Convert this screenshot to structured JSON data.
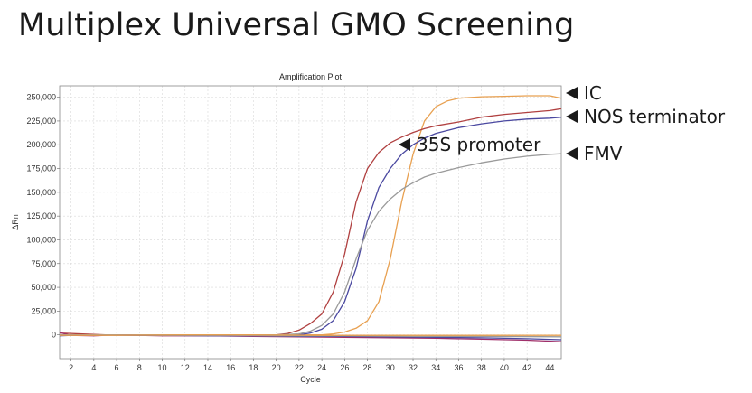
{
  "page": {
    "title": "Multiplex Universal GMO Screening"
  },
  "chart_data": {
    "type": "line",
    "title": "Amplification Plot",
    "xlabel": "Cycle",
    "ylabel": "ΔRn",
    "xlim": [
      1,
      45
    ],
    "ylim": [
      -25000,
      262000
    ],
    "x_ticks": [
      2,
      4,
      6,
      8,
      10,
      12,
      14,
      16,
      18,
      20,
      22,
      24,
      26,
      28,
      30,
      32,
      34,
      36,
      38,
      40,
      42,
      44
    ],
    "y_ticks": [
      0,
      25000,
      50000,
      75000,
      100000,
      125000,
      150000,
      175000,
      200000,
      225000,
      250000
    ],
    "y_tick_labels": [
      "0",
      "25,000",
      "50,000",
      "75,000",
      "100,000",
      "125,000",
      "150,000",
      "175,000",
      "200,000",
      "225,000",
      "250,000"
    ],
    "grid": true,
    "series": [
      {
        "name": "IC",
        "color": "#e8a050",
        "points": [
          [
            1,
            0
          ],
          [
            5,
            0
          ],
          [
            10,
            0
          ],
          [
            15,
            0
          ],
          [
            20,
            0
          ],
          [
            24,
            0
          ],
          [
            25,
            1000
          ],
          [
            26,
            3000
          ],
          [
            27,
            7000
          ],
          [
            28,
            15000
          ],
          [
            29,
            35000
          ],
          [
            30,
            80000
          ],
          [
            31,
            140000
          ],
          [
            32,
            190000
          ],
          [
            33,
            225000
          ],
          [
            34,
            240000
          ],
          [
            35,
            246000
          ],
          [
            36,
            249000
          ],
          [
            38,
            250500
          ],
          [
            40,
            251000
          ],
          [
            42,
            251500
          ],
          [
            44,
            251500
          ],
          [
            45,
            249000
          ]
        ]
      },
      {
        "name": "NOS terminator",
        "color": "#b04040",
        "points": [
          [
            1,
            2000
          ],
          [
            5,
            0
          ],
          [
            10,
            0
          ],
          [
            15,
            0
          ],
          [
            20,
            0
          ],
          [
            21,
            1500
          ],
          [
            22,
            5000
          ],
          [
            23,
            12000
          ],
          [
            24,
            22000
          ],
          [
            25,
            45000
          ],
          [
            26,
            85000
          ],
          [
            27,
            140000
          ],
          [
            28,
            175000
          ],
          [
            29,
            192000
          ],
          [
            30,
            202000
          ],
          [
            31,
            208000
          ],
          [
            32,
            213000
          ],
          [
            33,
            217000
          ],
          [
            34,
            220000
          ],
          [
            36,
            224000
          ],
          [
            38,
            229000
          ],
          [
            40,
            232000
          ],
          [
            42,
            234000
          ],
          [
            44,
            236000
          ],
          [
            45,
            238000
          ]
        ]
      },
      {
        "name": "35S promoter",
        "color": "#4a48a0",
        "points": [
          [
            1,
            0
          ],
          [
            5,
            0
          ],
          [
            10,
            0
          ],
          [
            15,
            0
          ],
          [
            20,
            0
          ],
          [
            22,
            0
          ],
          [
            23,
            2000
          ],
          [
            24,
            6000
          ],
          [
            25,
            15000
          ],
          [
            26,
            35000
          ],
          [
            27,
            70000
          ],
          [
            28,
            120000
          ],
          [
            29,
            155000
          ],
          [
            30,
            175000
          ],
          [
            31,
            190000
          ],
          [
            32,
            200000
          ],
          [
            33,
            207000
          ],
          [
            34,
            212000
          ],
          [
            36,
            218000
          ],
          [
            38,
            222000
          ],
          [
            40,
            225000
          ],
          [
            42,
            227000
          ],
          [
            44,
            228000
          ],
          [
            45,
            229000
          ]
        ]
      },
      {
        "name": "FMV",
        "color": "#9a9a9a",
        "points": [
          [
            1,
            0
          ],
          [
            5,
            0
          ],
          [
            10,
            0
          ],
          [
            15,
            0
          ],
          [
            20,
            0
          ],
          [
            22,
            1000
          ],
          [
            23,
            4000
          ],
          [
            24,
            10000
          ],
          [
            25,
            22000
          ],
          [
            26,
            45000
          ],
          [
            27,
            80000
          ],
          [
            28,
            110000
          ],
          [
            29,
            130000
          ],
          [
            30,
            143000
          ],
          [
            31,
            153000
          ],
          [
            32,
            160000
          ],
          [
            33,
            166000
          ],
          [
            34,
            170000
          ],
          [
            36,
            176000
          ],
          [
            38,
            181000
          ],
          [
            40,
            185000
          ],
          [
            42,
            188000
          ],
          [
            44,
            190000
          ],
          [
            45,
            190500
          ]
        ]
      },
      {
        "name": "",
        "color": "#a0306a",
        "points": [
          [
            1,
            2500
          ],
          [
            2,
            -500
          ],
          [
            4,
            -1000
          ],
          [
            6,
            0
          ],
          [
            8,
            -500
          ],
          [
            10,
            -1000
          ],
          [
            14,
            -1000
          ],
          [
            18,
            -1500
          ],
          [
            22,
            -2000
          ],
          [
            26,
            -2500
          ],
          [
            30,
            -3000
          ],
          [
            34,
            -3500
          ],
          [
            38,
            -4500
          ],
          [
            42,
            -5500
          ],
          [
            45,
            -7000
          ]
        ]
      },
      {
        "name": "",
        "color": "#4a48a0",
        "points": [
          [
            1,
            -1000
          ],
          [
            3,
            0
          ],
          [
            6,
            -500
          ],
          [
            10,
            -500
          ],
          [
            14,
            -1000
          ],
          [
            18,
            -1000
          ],
          [
            22,
            -1500
          ],
          [
            26,
            -1500
          ],
          [
            30,
            -2000
          ],
          [
            34,
            -2500
          ],
          [
            38,
            -3000
          ],
          [
            42,
            -4000
          ],
          [
            45,
            -5000
          ]
        ]
      },
      {
        "name": "",
        "color": "#9a9a9a",
        "points": [
          [
            1,
            0
          ],
          [
            6,
            0
          ],
          [
            10,
            -500
          ],
          [
            16,
            -500
          ],
          [
            20,
            -1000
          ],
          [
            26,
            -1000
          ],
          [
            32,
            -1500
          ],
          [
            38,
            -1500
          ],
          [
            45,
            -2000
          ]
        ]
      },
      {
        "name": "",
        "color": "#e8a050",
        "points": [
          [
            1,
            -500
          ],
          [
            6,
            -500
          ],
          [
            12,
            0
          ],
          [
            18,
            0
          ],
          [
            24,
            -500
          ],
          [
            30,
            -500
          ],
          [
            36,
            -500
          ],
          [
            45,
            -500
          ]
        ]
      }
    ],
    "annotations": [
      {
        "label": "IC",
        "x": 45,
        "y": 251500
      },
      {
        "label": "NOS terminator",
        "x": 45,
        "y": 231000
      },
      {
        "label": "35S promoter",
        "x": 31,
        "y": 199000
      },
      {
        "label": "FMV",
        "x": 45,
        "y": 190500
      }
    ]
  }
}
